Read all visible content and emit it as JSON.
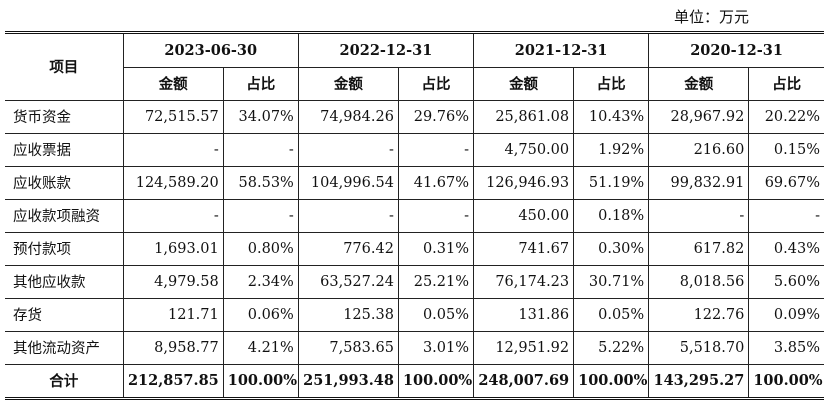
{
  "unit_label": "单位：万元",
  "header": {
    "item_label": "项目",
    "periods": [
      "2023-06-30",
      "2022-12-31",
      "2021-12-31",
      "2020-12-31"
    ],
    "amount_label": "金额",
    "ratio_label": "占比"
  },
  "rows": [
    {
      "item": "货币资金",
      "values": [
        "72,515.57",
        "34.07%",
        "74,984.26",
        "29.76%",
        "25,861.08",
        "10.43%",
        "28,967.92",
        "20.22%"
      ]
    },
    {
      "item": "应收票据",
      "values": [
        "-",
        "-",
        "-",
        "-",
        "4,750.00",
        "1.92%",
        "216.60",
        "0.15%"
      ]
    },
    {
      "item": "应收账款",
      "values": [
        "124,589.20",
        "58.53%",
        "104,996.54",
        "41.67%",
        "126,946.93",
        "51.19%",
        "99,832.91",
        "69.67%"
      ]
    },
    {
      "item": "应收款项融资",
      "values": [
        "-",
        "-",
        "-",
        "-",
        "450.00",
        "0.18%",
        "-",
        "-"
      ]
    },
    {
      "item": "预付款项",
      "values": [
        "1,693.01",
        "0.80%",
        "776.42",
        "0.31%",
        "741.67",
        "0.30%",
        "617.82",
        "0.43%"
      ]
    },
    {
      "item": "其他应收款",
      "values": [
        "4,979.58",
        "2.34%",
        "63,527.24",
        "25.21%",
        "76,174.23",
        "30.71%",
        "8,018.56",
        "5.60%"
      ]
    },
    {
      "item": "存货",
      "values": [
        "121.71",
        "0.06%",
        "125.38",
        "0.05%",
        "131.86",
        "0.05%",
        "122.76",
        "0.09%"
      ]
    },
    {
      "item": "其他流动资产",
      "values": [
        "8,958.77",
        "4.21%",
        "7,583.65",
        "3.01%",
        "12,951.92",
        "5.22%",
        "5,518.70",
        "3.85%"
      ]
    }
  ],
  "total": {
    "item": "合计",
    "values": [
      "212,857.85",
      "100.00%",
      "251,993.48",
      "100.00%",
      "248,007.69",
      "100.00%",
      "143,295.27",
      "100.00%"
    ]
  }
}
